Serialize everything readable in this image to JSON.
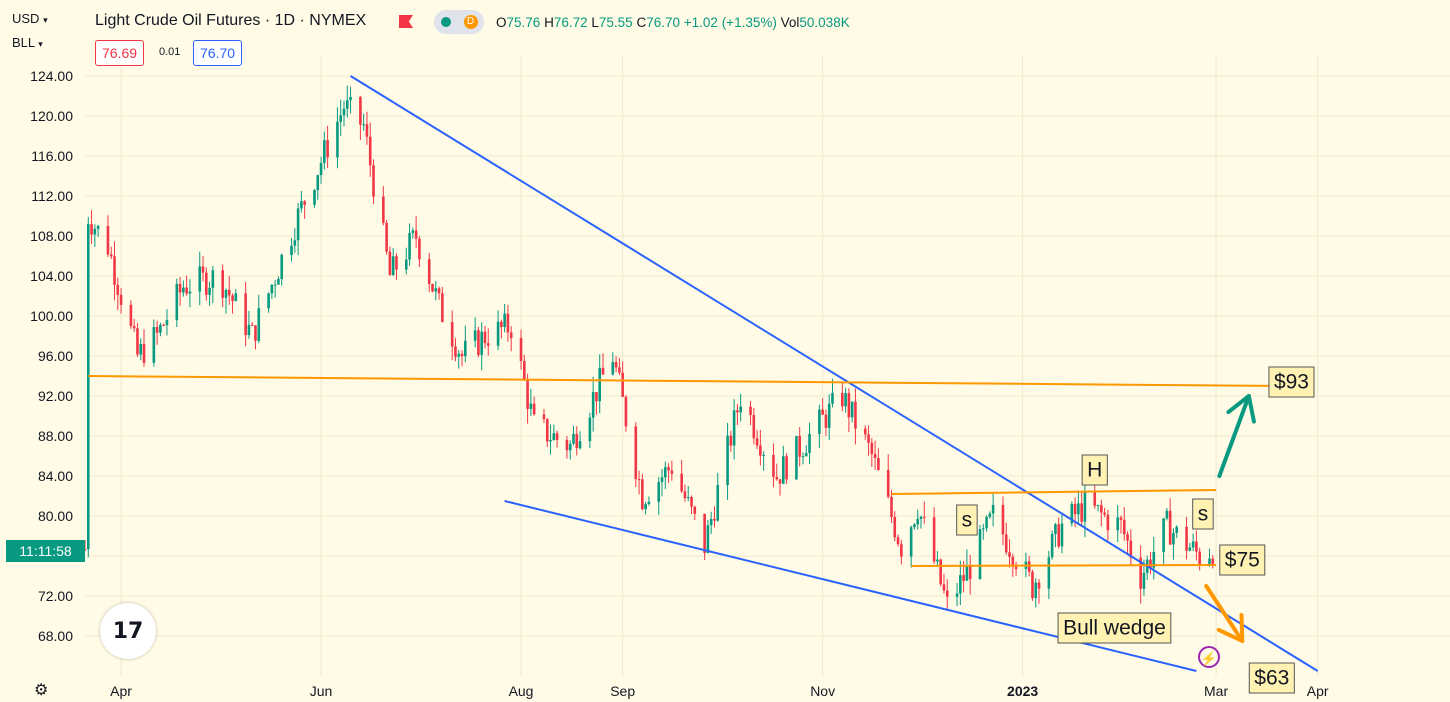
{
  "header": {
    "currency": "USD",
    "unit": "BLL",
    "symbol_title": "Light Crude Oil Futures · 1D · NYMEX",
    "ohlc": {
      "o_label": "O",
      "o": "75.76",
      "h_label": "H",
      "h": "76.72",
      "l_label": "L",
      "l": "75.55",
      "c_label": "C",
      "c": "76.70",
      "change": "+1.02 (+1.35%)",
      "vol_label": "Vol",
      "vol": "50.038K"
    },
    "bid": "76.69",
    "spread": "0.01",
    "ask": "76.70",
    "status_dot_a": "green",
    "status_dot_b": "D"
  },
  "countdown": "11:11:58",
  "logo_text": "17",
  "colors": {
    "up": "#089981",
    "down": "#f23645",
    "blue_line": "#2962ff",
    "orange_line": "#ff9800",
    "arrow_green": "#089981",
    "arrow_orange": "#ff9800",
    "label_bg": "#fff2b3"
  },
  "chart_data": {
    "type": "candlestick",
    "y_axis": {
      "min": 64,
      "max": 126,
      "ticks": [
        "124.00",
        "120.00",
        "116.00",
        "112.00",
        "108.00",
        "104.00",
        "100.00",
        "96.00",
        "92.00",
        "88.00",
        "84.00",
        "80.00",
        "76.00",
        "72.00",
        "68.00"
      ]
    },
    "x_axis": {
      "labels": [
        {
          "label": "Apr",
          "date": "2022-04-01"
        },
        {
          "label": "Jun",
          "date": "2022-06-01"
        },
        {
          "label": "Aug",
          "date": "2022-08-01"
        },
        {
          "label": "Sep",
          "date": "2022-09-01"
        },
        {
          "label": "Nov",
          "date": "2022-11-01"
        },
        {
          "label": "2023",
          "date": "2023-01-01"
        },
        {
          "label": "Mar",
          "date": "2023-03-01"
        },
        {
          "label": "Apr",
          "date": "2023-04-01"
        }
      ]
    },
    "anchors": [
      {
        "date": "2022-03-22",
        "price": 110
      },
      {
        "date": "2022-03-28",
        "price": 107
      },
      {
        "date": "2022-04-06",
        "price": 96
      },
      {
        "date": "2022-04-12",
        "price": 98
      },
      {
        "date": "2022-04-20",
        "price": 103
      },
      {
        "date": "2022-05-01",
        "price": 104
      },
      {
        "date": "2022-05-11",
        "price": 98
      },
      {
        "date": "2022-05-25",
        "price": 110
      },
      {
        "date": "2022-06-08",
        "price": 121
      },
      {
        "date": "2022-06-14",
        "price": 119
      },
      {
        "date": "2022-06-22",
        "price": 104
      },
      {
        "date": "2022-06-30",
        "price": 108
      },
      {
        "date": "2022-07-07",
        "price": 101
      },
      {
        "date": "2022-07-14",
        "price": 96
      },
      {
        "date": "2022-07-21",
        "price": 98
      },
      {
        "date": "2022-07-29",
        "price": 99
      },
      {
        "date": "2022-08-05",
        "price": 89
      },
      {
        "date": "2022-08-16",
        "price": 87
      },
      {
        "date": "2022-08-29",
        "price": 96
      },
      {
        "date": "2022-09-07",
        "price": 82
      },
      {
        "date": "2022-09-16",
        "price": 85
      },
      {
        "date": "2022-09-26",
        "price": 77
      },
      {
        "date": "2022-10-07",
        "price": 92
      },
      {
        "date": "2022-10-18",
        "price": 84
      },
      {
        "date": "2022-10-28",
        "price": 88
      },
      {
        "date": "2022-11-07",
        "price": 92
      },
      {
        "date": "2022-11-16",
        "price": 86
      },
      {
        "date": "2022-11-25",
        "price": 77
      },
      {
        "date": "2022-11-30",
        "price": 81
      },
      {
        "date": "2022-12-09",
        "price": 71
      },
      {
        "date": "2022-12-16",
        "price": 75
      },
      {
        "date": "2022-12-23",
        "price": 80
      },
      {
        "date": "2023-01-04",
        "price": 73
      },
      {
        "date": "2023-01-13",
        "price": 79
      },
      {
        "date": "2023-01-20",
        "price": 81
      },
      {
        "date": "2023-01-31",
        "price": 79
      },
      {
        "date": "2023-02-06",
        "price": 74
      },
      {
        "date": "2023-02-14",
        "price": 79
      },
      {
        "date": "2023-02-24",
        "price": 76
      },
      {
        "date": "2023-02-28",
        "price": 76.7
      }
    ],
    "annotations": {
      "trendlines": [
        {
          "name": "wedge-upper",
          "color": "blue",
          "from": {
            "date": "2022-06-10",
            "price": 124
          },
          "to": {
            "date": "2023-04-01",
            "price": 64.5
          }
        },
        {
          "name": "wedge-lower",
          "color": "blue",
          "from": {
            "date": "2022-07-27",
            "price": 81.5
          },
          "to": {
            "date": "2023-02-23",
            "price": 64.5
          }
        },
        {
          "name": "resistance-93",
          "color": "orange",
          "from": {
            "date": "2022-03-22",
            "price": 94.0
          },
          "to": {
            "date": "2023-03-22",
            "price": 93.0
          }
        },
        {
          "name": "neckline-top",
          "color": "orange",
          "from": {
            "date": "2022-11-22",
            "price": 82.2
          },
          "to": {
            "date": "2023-03-01",
            "price": 82.6
          }
        },
        {
          "name": "neckline-bottom",
          "color": "orange",
          "from": {
            "date": "2022-11-28",
            "price": 75.0
          },
          "to": {
            "date": "2023-03-01",
            "price": 75.1
          }
        }
      ],
      "labels": [
        {
          "text": "$93",
          "date": "2023-03-24",
          "price": 93.4
        },
        {
          "text": "$75",
          "date": "2023-03-09",
          "price": 75.6
        },
        {
          "text": "H",
          "date": "2023-01-23",
          "price": 84.6
        },
        {
          "text": "s",
          "date": "2022-12-15",
          "price": 79.6
        },
        {
          "text": "s",
          "date": "2023-02-25",
          "price": 80.2
        },
        {
          "text": "Bull wedge",
          "date": "2023-01-29",
          "price": 68.8
        },
        {
          "text": "$63",
          "date": "2023-03-18",
          "price": 63.8
        }
      ],
      "arrows": [
        {
          "name": "up-arrow",
          "color": "green",
          "from": {
            "date": "2023-03-02",
            "price": 84.0
          },
          "to": {
            "date": "2023-03-11",
            "price": 92.0
          }
        },
        {
          "name": "down-arrow",
          "color": "orange",
          "from": {
            "date": "2023-02-26",
            "price": 73.0
          },
          "to": {
            "date": "2023-03-09",
            "price": 67.5
          }
        }
      ]
    }
  }
}
